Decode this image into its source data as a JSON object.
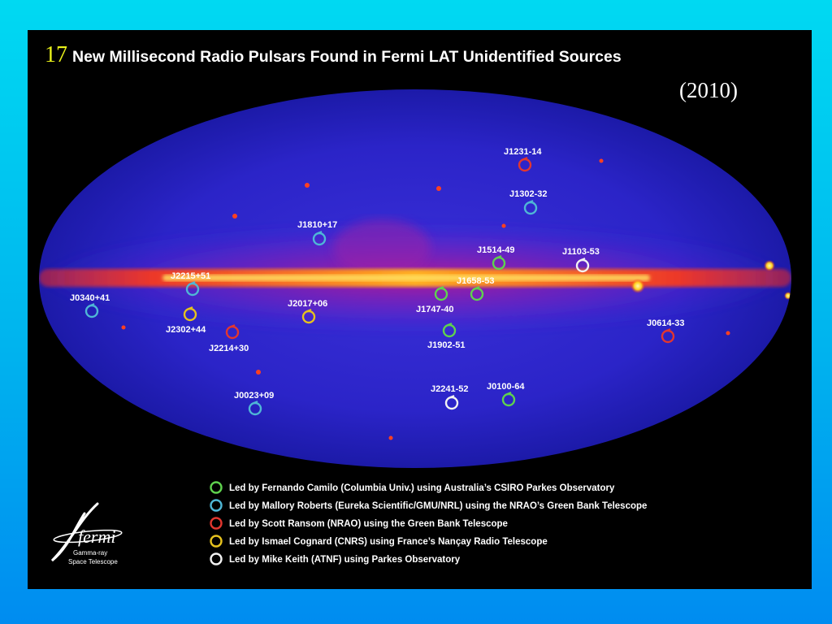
{
  "slide": {
    "title_number": "17",
    "title_text": "New Millisecond Radio Pulsars Found in Fermi LAT Unidentified Sources",
    "year": "(2010)"
  },
  "colors": {
    "green": "#5fd24e",
    "cyan": "#4fb7d6",
    "red": "#e2372f",
    "yellow": "#e6c21e",
    "white": "#f2f2f2"
  },
  "pulsars": [
    {
      "name": "J1231-14",
      "team": "red"
    },
    {
      "name": "J1302-32",
      "team": "cyan"
    },
    {
      "name": "J1810+17",
      "team": "cyan"
    },
    {
      "name": "J1514-49",
      "team": "green"
    },
    {
      "name": "J1103-53",
      "team": "white"
    },
    {
      "name": "J2215+51",
      "team": "cyan"
    },
    {
      "name": "J1658-53",
      "team": "green"
    },
    {
      "name": "J1747-40",
      "team": "green"
    },
    {
      "name": "J0340+41",
      "team": "cyan"
    },
    {
      "name": "J2017+06",
      "team": "yellow"
    },
    {
      "name": "J2302+44",
      "team": "yellow"
    },
    {
      "name": "J2214+30",
      "team": "red"
    },
    {
      "name": "J1902-51",
      "team": "green"
    },
    {
      "name": "J0614-33",
      "team": "red"
    },
    {
      "name": "J0023+09",
      "team": "cyan"
    },
    {
      "name": "J2241-52",
      "team": "white"
    },
    {
      "name": "J0100-64",
      "team": "green"
    }
  ],
  "legend": [
    {
      "team": "green",
      "label": "Led by Fernando Camilo (Columbia Univ.) using Australia’s CSIRO Parkes Observatory"
    },
    {
      "team": "cyan",
      "label": "Led by Mallory Roberts (Eureka Scientific/GMU/NRL) using the NRAO’s Green Bank Telescope"
    },
    {
      "team": "red",
      "label": "Led by Scott Ransom (NRAO) using the Green Bank Telescope"
    },
    {
      "team": "yellow",
      "label": "Led by Ismael Cognard (CNRS) using France’s Nançay Radio Telescope"
    },
    {
      "team": "white",
      "label": "Led by Mike Keith (ATNF) using Parkes Observatory"
    }
  ],
  "logo": {
    "word": "fermi",
    "line1": "Gamma-ray",
    "line2": "Space Telescope"
  }
}
